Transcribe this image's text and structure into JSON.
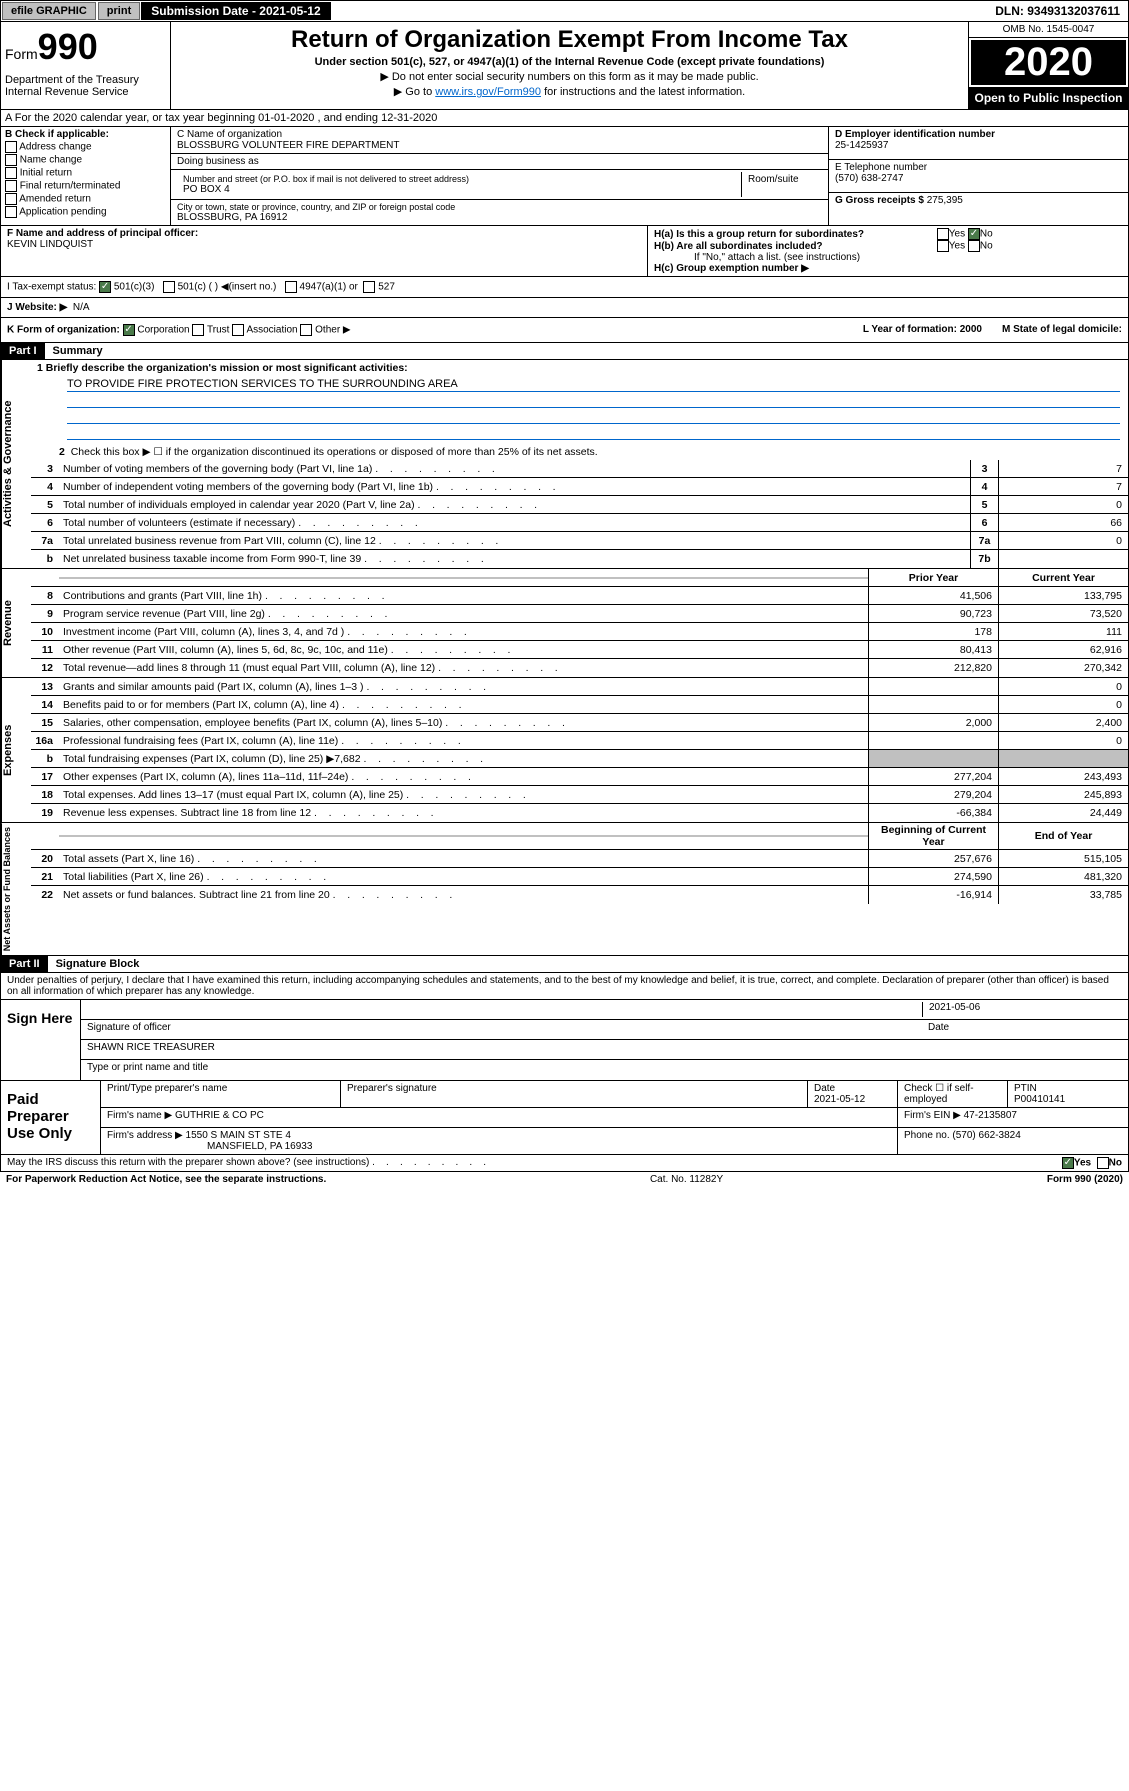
{
  "topbar": {
    "efile": "efile GRAPHIC",
    "print": "print",
    "subdate_label": "Submission Date - 2021-05-12",
    "dln": "DLN: 93493132037611"
  },
  "header": {
    "form_label": "Form",
    "form_num": "990",
    "dept": "Department of the Treasury Internal Revenue Service",
    "title": "Return of Organization Exempt From Income Tax",
    "subtitle": "Under section 501(c), 527, or 4947(a)(1) of the Internal Revenue Code (except private foundations)",
    "sub2": "▶ Do not enter social security numbers on this form as it may be made public.",
    "sub3_pre": "▶ Go to ",
    "sub3_link": "www.irs.gov/Form990",
    "sub3_post": " for instructions and the latest information.",
    "omb": "OMB No. 1545-0047",
    "year": "2020",
    "openpub": "Open to Public Inspection"
  },
  "rowA": "A For the 2020 calendar year, or tax year beginning 01-01-2020    , and ending 12-31-2020",
  "colB": {
    "label": "B Check if applicable:",
    "opts": [
      "Address change",
      "Name change",
      "Initial return",
      "Final return/terminated",
      "Amended return",
      "Application pending"
    ]
  },
  "colC": {
    "name_label": "C Name of organization",
    "name": "BLOSSBURG VOLUNTEER FIRE DEPARTMENT",
    "dba": "Doing business as",
    "addr_label": "Number and street (or P.O. box if mail is not delivered to street address)",
    "room": "Room/suite",
    "addr": "PO BOX 4",
    "city_label": "City or town, state or province, country, and ZIP or foreign postal code",
    "city": "BLOSSBURG, PA  16912"
  },
  "colD": {
    "ein_label": "D Employer identification number",
    "ein": "25-1425937",
    "phone_label": "E Telephone number",
    "phone": "(570) 638-2747",
    "gross_label": "G Gross receipts $ ",
    "gross": "275,395"
  },
  "rowF": {
    "label": "F  Name and address of principal officer:",
    "name": "KEVIN LINDQUIST"
  },
  "rowH": {
    "a": "H(a)  Is this a group return for subordinates?",
    "b": "H(b)  Are all subordinates included?",
    "note": "If \"No,\" attach a list. (see instructions)",
    "c": "H(c)  Group exemption number ▶",
    "yes": "Yes",
    "no": "No"
  },
  "rowI": {
    "label": "I    Tax-exempt status:",
    "o1": "501(c)(3)",
    "o2": "501(c) (  ) ◀(insert no.)",
    "o3": "4947(a)(1) or",
    "o4": "527"
  },
  "rowJ": {
    "label": "J   Website: ▶",
    "val": "N/A"
  },
  "rowK": {
    "label": "K Form of organization:",
    "o1": "Corporation",
    "o2": "Trust",
    "o3": "Association",
    "o4": "Other ▶",
    "l": "L Year of formation: 2000",
    "m": "M State of legal domicile:"
  },
  "part1": {
    "hdr": "Part I",
    "title": "Summary"
  },
  "gov": {
    "sidebar": "Activities & Governance",
    "l1": "1  Briefly describe the organization's mission or most significant activities:",
    "mission": "TO PROVIDE FIRE PROTECTION SERVICES TO THE SURROUNDING AREA",
    "l2": "Check this box ▶ ☐  if the organization discontinued its operations or disposed of more than 25% of its net assets.",
    "lines": [
      {
        "n": "3",
        "d": "Number of voting members of the governing body (Part VI, line 1a)",
        "b": "3",
        "v": "7"
      },
      {
        "n": "4",
        "d": "Number of independent voting members of the governing body (Part VI, line 1b)",
        "b": "4",
        "v": "7"
      },
      {
        "n": "5",
        "d": "Total number of individuals employed in calendar year 2020 (Part V, line 2a)",
        "b": "5",
        "v": "0"
      },
      {
        "n": "6",
        "d": "Total number of volunteers (estimate if necessary)",
        "b": "6",
        "v": "66"
      },
      {
        "n": "7a",
        "d": "Total unrelated business revenue from Part VIII, column (C), line 12",
        "b": "7a",
        "v": "0"
      },
      {
        "n": "b",
        "d": "Net unrelated business taxable income from Form 990-T, line 39",
        "b": "7b",
        "v": ""
      }
    ]
  },
  "rev": {
    "sidebar": "Revenue",
    "hdr_prior": "Prior Year",
    "hdr_curr": "Current Year",
    "lines": [
      {
        "n": "8",
        "d": "Contributions and grants (Part VIII, line 1h)",
        "p": "41,506",
        "c": "133,795"
      },
      {
        "n": "9",
        "d": "Program service revenue (Part VIII, line 2g)",
        "p": "90,723",
        "c": "73,520"
      },
      {
        "n": "10",
        "d": "Investment income (Part VIII, column (A), lines 3, 4, and 7d )",
        "p": "178",
        "c": "111"
      },
      {
        "n": "11",
        "d": "Other revenue (Part VIII, column (A), lines 5, 6d, 8c, 9c, 10c, and 11e)",
        "p": "80,413",
        "c": "62,916"
      },
      {
        "n": "12",
        "d": "Total revenue—add lines 8 through 11 (must equal Part VIII, column (A), line 12)",
        "p": "212,820",
        "c": "270,342"
      }
    ]
  },
  "exp": {
    "sidebar": "Expenses",
    "lines": [
      {
        "n": "13",
        "d": "Grants and similar amounts paid (Part IX, column (A), lines 1–3 )",
        "p": "",
        "c": "0"
      },
      {
        "n": "14",
        "d": "Benefits paid to or for members (Part IX, column (A), line 4)",
        "p": "",
        "c": "0"
      },
      {
        "n": "15",
        "d": "Salaries, other compensation, employee benefits (Part IX, column (A), lines 5–10)",
        "p": "2,000",
        "c": "2,400"
      },
      {
        "n": "16a",
        "d": "Professional fundraising fees (Part IX, column (A), line 11e)",
        "p": "",
        "c": "0"
      },
      {
        "n": "b",
        "d": "Total fundraising expenses (Part IX, column (D), line 25) ▶7,682",
        "p": "grey",
        "c": "grey"
      },
      {
        "n": "17",
        "d": "Other expenses (Part IX, column (A), lines 11a–11d, 11f–24e)",
        "p": "277,204",
        "c": "243,493"
      },
      {
        "n": "18",
        "d": "Total expenses. Add lines 13–17 (must equal Part IX, column (A), line 25)",
        "p": "279,204",
        "c": "245,893"
      },
      {
        "n": "19",
        "d": "Revenue less expenses. Subtract line 18 from line 12",
        "p": "-66,384",
        "c": "24,449"
      }
    ]
  },
  "net": {
    "sidebar": "Net Assets or Fund Balances",
    "hdr_beg": "Beginning of Current Year",
    "hdr_end": "End of Year",
    "lines": [
      {
        "n": "20",
        "d": "Total assets (Part X, line 16)",
        "p": "257,676",
        "c": "515,105"
      },
      {
        "n": "21",
        "d": "Total liabilities (Part X, line 26)",
        "p": "274,590",
        "c": "481,320"
      },
      {
        "n": "22",
        "d": "Net assets or fund balances. Subtract line 21 from line 20",
        "p": "-16,914",
        "c": "33,785"
      }
    ]
  },
  "part2": {
    "hdr": "Part II",
    "title": "Signature Block"
  },
  "sig": {
    "intro": "Under penalties of perjury, I declare that I have examined this return, including accompanying schedules and statements, and to the best of my knowledge and belief, it is true, correct, and complete. Declaration of preparer (other than officer) is based on all information of which preparer has any knowledge.",
    "sign_here": "Sign Here",
    "sig_of": "Signature of officer",
    "date": "2021-05-06",
    "date_label": "Date",
    "name": "SHAWN RICE TREASURER",
    "name_label": "Type or print name and title"
  },
  "paid": {
    "label": "Paid Preparer Use Only",
    "h1": "Print/Type preparer's name",
    "h2": "Preparer's signature",
    "h3": "Date",
    "h3v": "2021-05-12",
    "h4": "Check ☐ if self-employed",
    "h5": "PTIN",
    "h5v": "P00410141",
    "firm_label": "Firm's name    ▶",
    "firm": "GUTHRIE & CO PC",
    "ein_label": "Firm's EIN ▶",
    "ein": "47-2135807",
    "addr_label": "Firm's address ▶",
    "addr1": "1550 S MAIN ST STE 4",
    "addr2": "MANSFIELD, PA  16933",
    "phone_label": "Phone no.",
    "phone": "(570) 662-3824"
  },
  "footer": {
    "q": "May the IRS discuss this return with the preparer shown above? (see instructions)",
    "yes": "Yes",
    "no": "No"
  },
  "bottom": {
    "l": "For Paperwork Reduction Act Notice, see the separate instructions.",
    "m": "Cat. No. 11282Y",
    "r": "Form 990 (2020)"
  }
}
